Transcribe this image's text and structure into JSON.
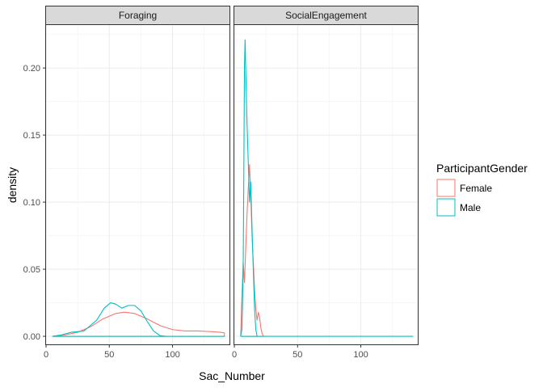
{
  "chart_data": {
    "type": "line",
    "xlabel": "Sac_Number",
    "ylabel": "density",
    "xlim": [
      0,
      145
    ],
    "ylim": [
      -0.006,
      0.232
    ],
    "x_ticks": [
      0,
      50,
      100
    ],
    "y_ticks": [
      0.0,
      0.05,
      0.1,
      0.15,
      0.2
    ],
    "y_tick_labels": [
      "0.00",
      "0.05",
      "0.10",
      "0.15",
      "0.20"
    ],
    "grid": true,
    "legend": {
      "title": "ParticipantGender",
      "placement": "right",
      "entries": [
        {
          "label": "Female",
          "color": "#F8766D"
        },
        {
          "label": "Male",
          "color": "#00BFC4"
        }
      ]
    },
    "facets": [
      {
        "label": "Foraging",
        "series": [
          {
            "name": "Female",
            "color": "#F8766D",
            "points": [
              [
                5,
                0.0
              ],
              [
                15,
                0.001
              ],
              [
                25,
                0.003
              ],
              [
                35,
                0.007
              ],
              [
                45,
                0.013
              ],
              [
                55,
                0.017
              ],
              [
                62,
                0.018
              ],
              [
                70,
                0.017
              ],
              [
                80,
                0.013
              ],
              [
                90,
                0.008
              ],
              [
                100,
                0.005
              ],
              [
                110,
                0.004
              ],
              [
                120,
                0.004
              ],
              [
                130,
                0.0035
              ],
              [
                138,
                0.003
              ],
              [
                141,
                0.0025
              ],
              [
                141,
                0.0
              ],
              [
                5,
                0.0
              ]
            ]
          },
          {
            "name": "Male",
            "color": "#00BFC4",
            "points": [
              [
                5,
                0.0
              ],
              [
                12,
                0.001
              ],
              [
                20,
                0.003
              ],
              [
                30,
                0.004
              ],
              [
                40,
                0.012
              ],
              [
                46,
                0.021
              ],
              [
                51,
                0.025
              ],
              [
                55,
                0.024
              ],
              [
                60,
                0.021
              ],
              [
                65,
                0.023
              ],
              [
                70,
                0.023
              ],
              [
                75,
                0.019
              ],
              [
                80,
                0.011
              ],
              [
                85,
                0.004
              ],
              [
                90,
                0.0005
              ],
              [
                95,
                0.0
              ],
              [
                141,
                0.0
              ],
              [
                5,
                0.0
              ]
            ]
          }
        ]
      },
      {
        "label": "SocialEngagement",
        "series": [
          {
            "name": "Female",
            "color": "#F8766D",
            "points": [
              [
                5,
                0.0
              ],
              [
                6,
                0.03
              ],
              [
                7,
                0.055
              ],
              [
                8,
                0.04
              ],
              [
                9,
                0.065
              ],
              [
                10,
                0.09
              ],
              [
                11,
                0.11
              ],
              [
                12,
                0.128
              ],
              [
                13,
                0.105
              ],
              [
                14,
                0.075
              ],
              [
                15,
                0.055
              ],
              [
                16,
                0.035
              ],
              [
                17,
                0.02
              ],
              [
                18,
                0.012
              ],
              [
                19,
                0.018
              ],
              [
                20,
                0.014
              ],
              [
                21,
                0.006
              ],
              [
                22,
                0.002
              ],
              [
                23,
                0.0
              ],
              [
                5,
                0.0
              ]
            ]
          },
          {
            "name": "Male",
            "color": "#00BFC4",
            "points": [
              [
                5,
                0.0
              ],
              [
                6,
                0.005
              ],
              [
                7,
                0.05
              ],
              [
                7.5,
                0.12
              ],
              [
                8,
                0.2
              ],
              [
                8.5,
                0.221
              ],
              [
                9,
                0.2
              ],
              [
                10,
                0.16
              ],
              [
                11,
                0.13
              ],
              [
                12,
                0.1
              ],
              [
                13,
                0.115
              ],
              [
                14,
                0.08
              ],
              [
                15,
                0.05
              ],
              [
                16,
                0.02
              ],
              [
                17,
                0.005
              ],
              [
                18,
                0.0
              ],
              [
                141,
                0.0
              ],
              [
                5,
                0.0
              ]
            ]
          }
        ]
      }
    ]
  }
}
